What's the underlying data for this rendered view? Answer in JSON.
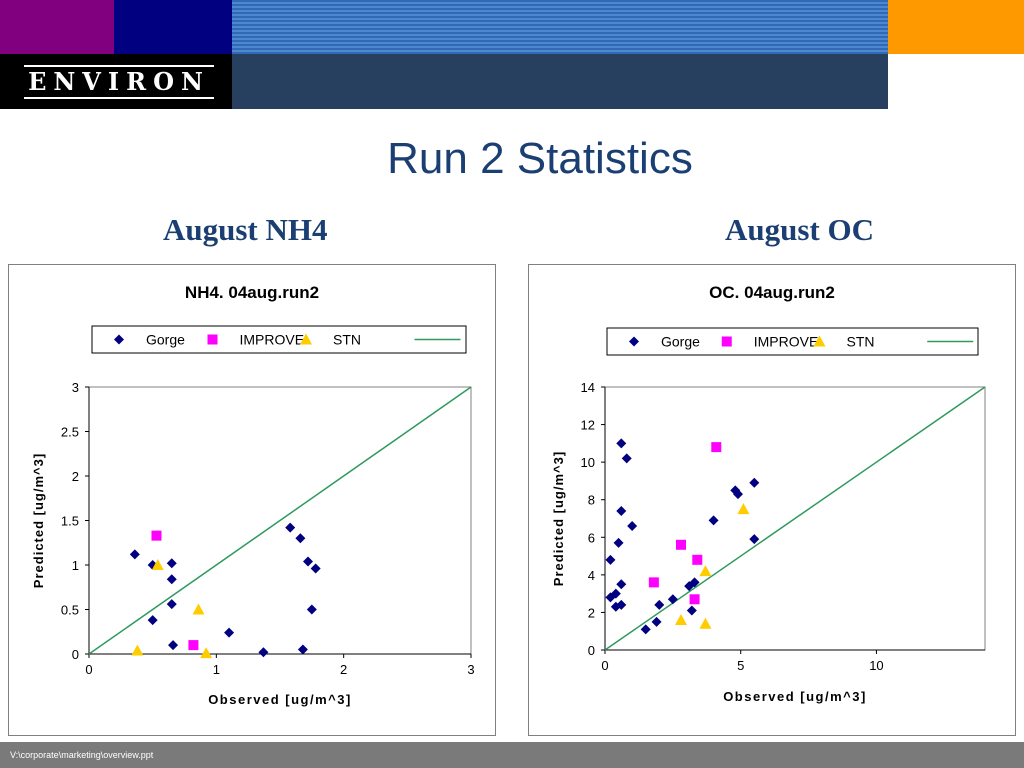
{
  "header": {
    "logo_text": "ENVIRON",
    "colors": {
      "purple": "#800080",
      "navy": "#000080",
      "stripe": "#2f6ab6",
      "orange": "#ff9900",
      "slate": "#27405f"
    }
  },
  "slide": {
    "title": "Run 2 Statistics",
    "left_heading": "August NH4",
    "right_heading": "August OC"
  },
  "footer": {
    "path": "V:\\corporate\\marketing\\overview.ppt"
  },
  "chart_data": [
    {
      "type": "scatter",
      "title": "NH4.  04aug.run2",
      "xlabel": "Observed [ug/m^3]",
      "ylabel": "Predicted [ug/m^3]",
      "xlim": [
        0,
        3
      ],
      "ylim": [
        0,
        3
      ],
      "x_ticks": [
        0,
        1,
        2,
        3
      ],
      "x_tick_labels": [
        "0",
        "1",
        "2",
        "3"
      ],
      "y_ticks": [
        0,
        0.5,
        1,
        1.5,
        2,
        2.5,
        3
      ],
      "y_tick_labels": [
        "0",
        "0.5",
        "1",
        "1.5",
        "2",
        "2.5",
        "3"
      ],
      "grid": false,
      "legend_position": "top",
      "series": [
        {
          "name": "Gorge",
          "marker": "diamond",
          "color": "#000080",
          "points": [
            [
              0.36,
              1.12
            ],
            [
              0.5,
              1.0
            ],
            [
              0.65,
              1.02
            ],
            [
              0.65,
              0.84
            ],
            [
              0.5,
              0.38
            ],
            [
              0.65,
              0.56
            ],
            [
              0.66,
              0.1
            ],
            [
              1.1,
              0.24
            ],
            [
              1.37,
              0.02
            ],
            [
              1.68,
              0.05
            ],
            [
              1.58,
              1.42
            ],
            [
              1.66,
              1.3
            ],
            [
              1.72,
              1.04
            ],
            [
              1.78,
              0.96
            ],
            [
              1.75,
              0.5
            ]
          ]
        },
        {
          "name": "IMPROVE",
          "marker": "square",
          "color": "#ff00ff",
          "points": [
            [
              0.53,
              1.33
            ],
            [
              0.82,
              0.1
            ]
          ]
        },
        {
          "name": "STN",
          "marker": "triangle",
          "color": "#ffcc00",
          "points": [
            [
              0.38,
              0.04
            ],
            [
              0.54,
              1.0
            ],
            [
              0.86,
              0.5
            ],
            [
              0.92,
              0.01
            ]
          ]
        },
        {
          "name": "",
          "marker": "line",
          "color": "#2e9a5e",
          "points": [
            [
              0,
              0
            ],
            [
              3,
              3
            ]
          ]
        }
      ]
    },
    {
      "type": "scatter",
      "title": "OC.  04aug.run2",
      "xlabel": "Observed [ug/m^3]",
      "ylabel": "Predicted [ug/m^3]",
      "xlim": [
        0,
        14
      ],
      "ylim": [
        0,
        14
      ],
      "x_ticks": [
        0,
        5,
        10
      ],
      "x_tick_labels": [
        "0",
        "5",
        "10"
      ],
      "y_ticks": [
        0,
        2,
        4,
        6,
        8,
        10,
        12,
        14
      ],
      "y_tick_labels": [
        "0",
        "2",
        "4",
        "6",
        "8",
        "10",
        "12",
        "14"
      ],
      "grid": false,
      "legend_position": "top",
      "series": [
        {
          "name": "Gorge",
          "marker": "diamond",
          "color": "#000080",
          "points": [
            [
              0.6,
              11.0
            ],
            [
              0.8,
              10.2
            ],
            [
              0.6,
              7.4
            ],
            [
              1.0,
              6.6
            ],
            [
              0.5,
              5.7
            ],
            [
              0.2,
              4.8
            ],
            [
              0.6,
              3.5
            ],
            [
              0.2,
              2.8
            ],
            [
              0.4,
              3.0
            ],
            [
              0.4,
              2.3
            ],
            [
              0.6,
              2.4
            ],
            [
              1.5,
              1.1
            ],
            [
              1.9,
              1.5
            ],
            [
              2.0,
              2.4
            ],
            [
              2.5,
              2.7
            ],
            [
              3.1,
              3.4
            ],
            [
              3.3,
              3.6
            ],
            [
              3.2,
              2.1
            ],
            [
              4.0,
              6.9
            ],
            [
              4.8,
              8.5
            ],
            [
              4.9,
              8.3
            ],
            [
              5.5,
              8.9
            ],
            [
              5.5,
              5.9
            ]
          ]
        },
        {
          "name": "IMPROVE",
          "marker": "square",
          "color": "#ff00ff",
          "points": [
            [
              4.1,
              10.8
            ],
            [
              2.8,
              5.6
            ],
            [
              3.4,
              4.8
            ],
            [
              1.8,
              3.6
            ],
            [
              3.3,
              2.7
            ]
          ]
        },
        {
          "name": "STN",
          "marker": "triangle",
          "color": "#ffcc00",
          "points": [
            [
              5.1,
              7.5
            ],
            [
              3.7,
              4.2
            ],
            [
              2.8,
              1.6
            ],
            [
              3.7,
              1.4
            ]
          ]
        },
        {
          "name": "",
          "marker": "line",
          "color": "#2e9a5e",
          "points": [
            [
              0,
              0
            ],
            [
              14,
              14
            ]
          ]
        }
      ]
    }
  ]
}
